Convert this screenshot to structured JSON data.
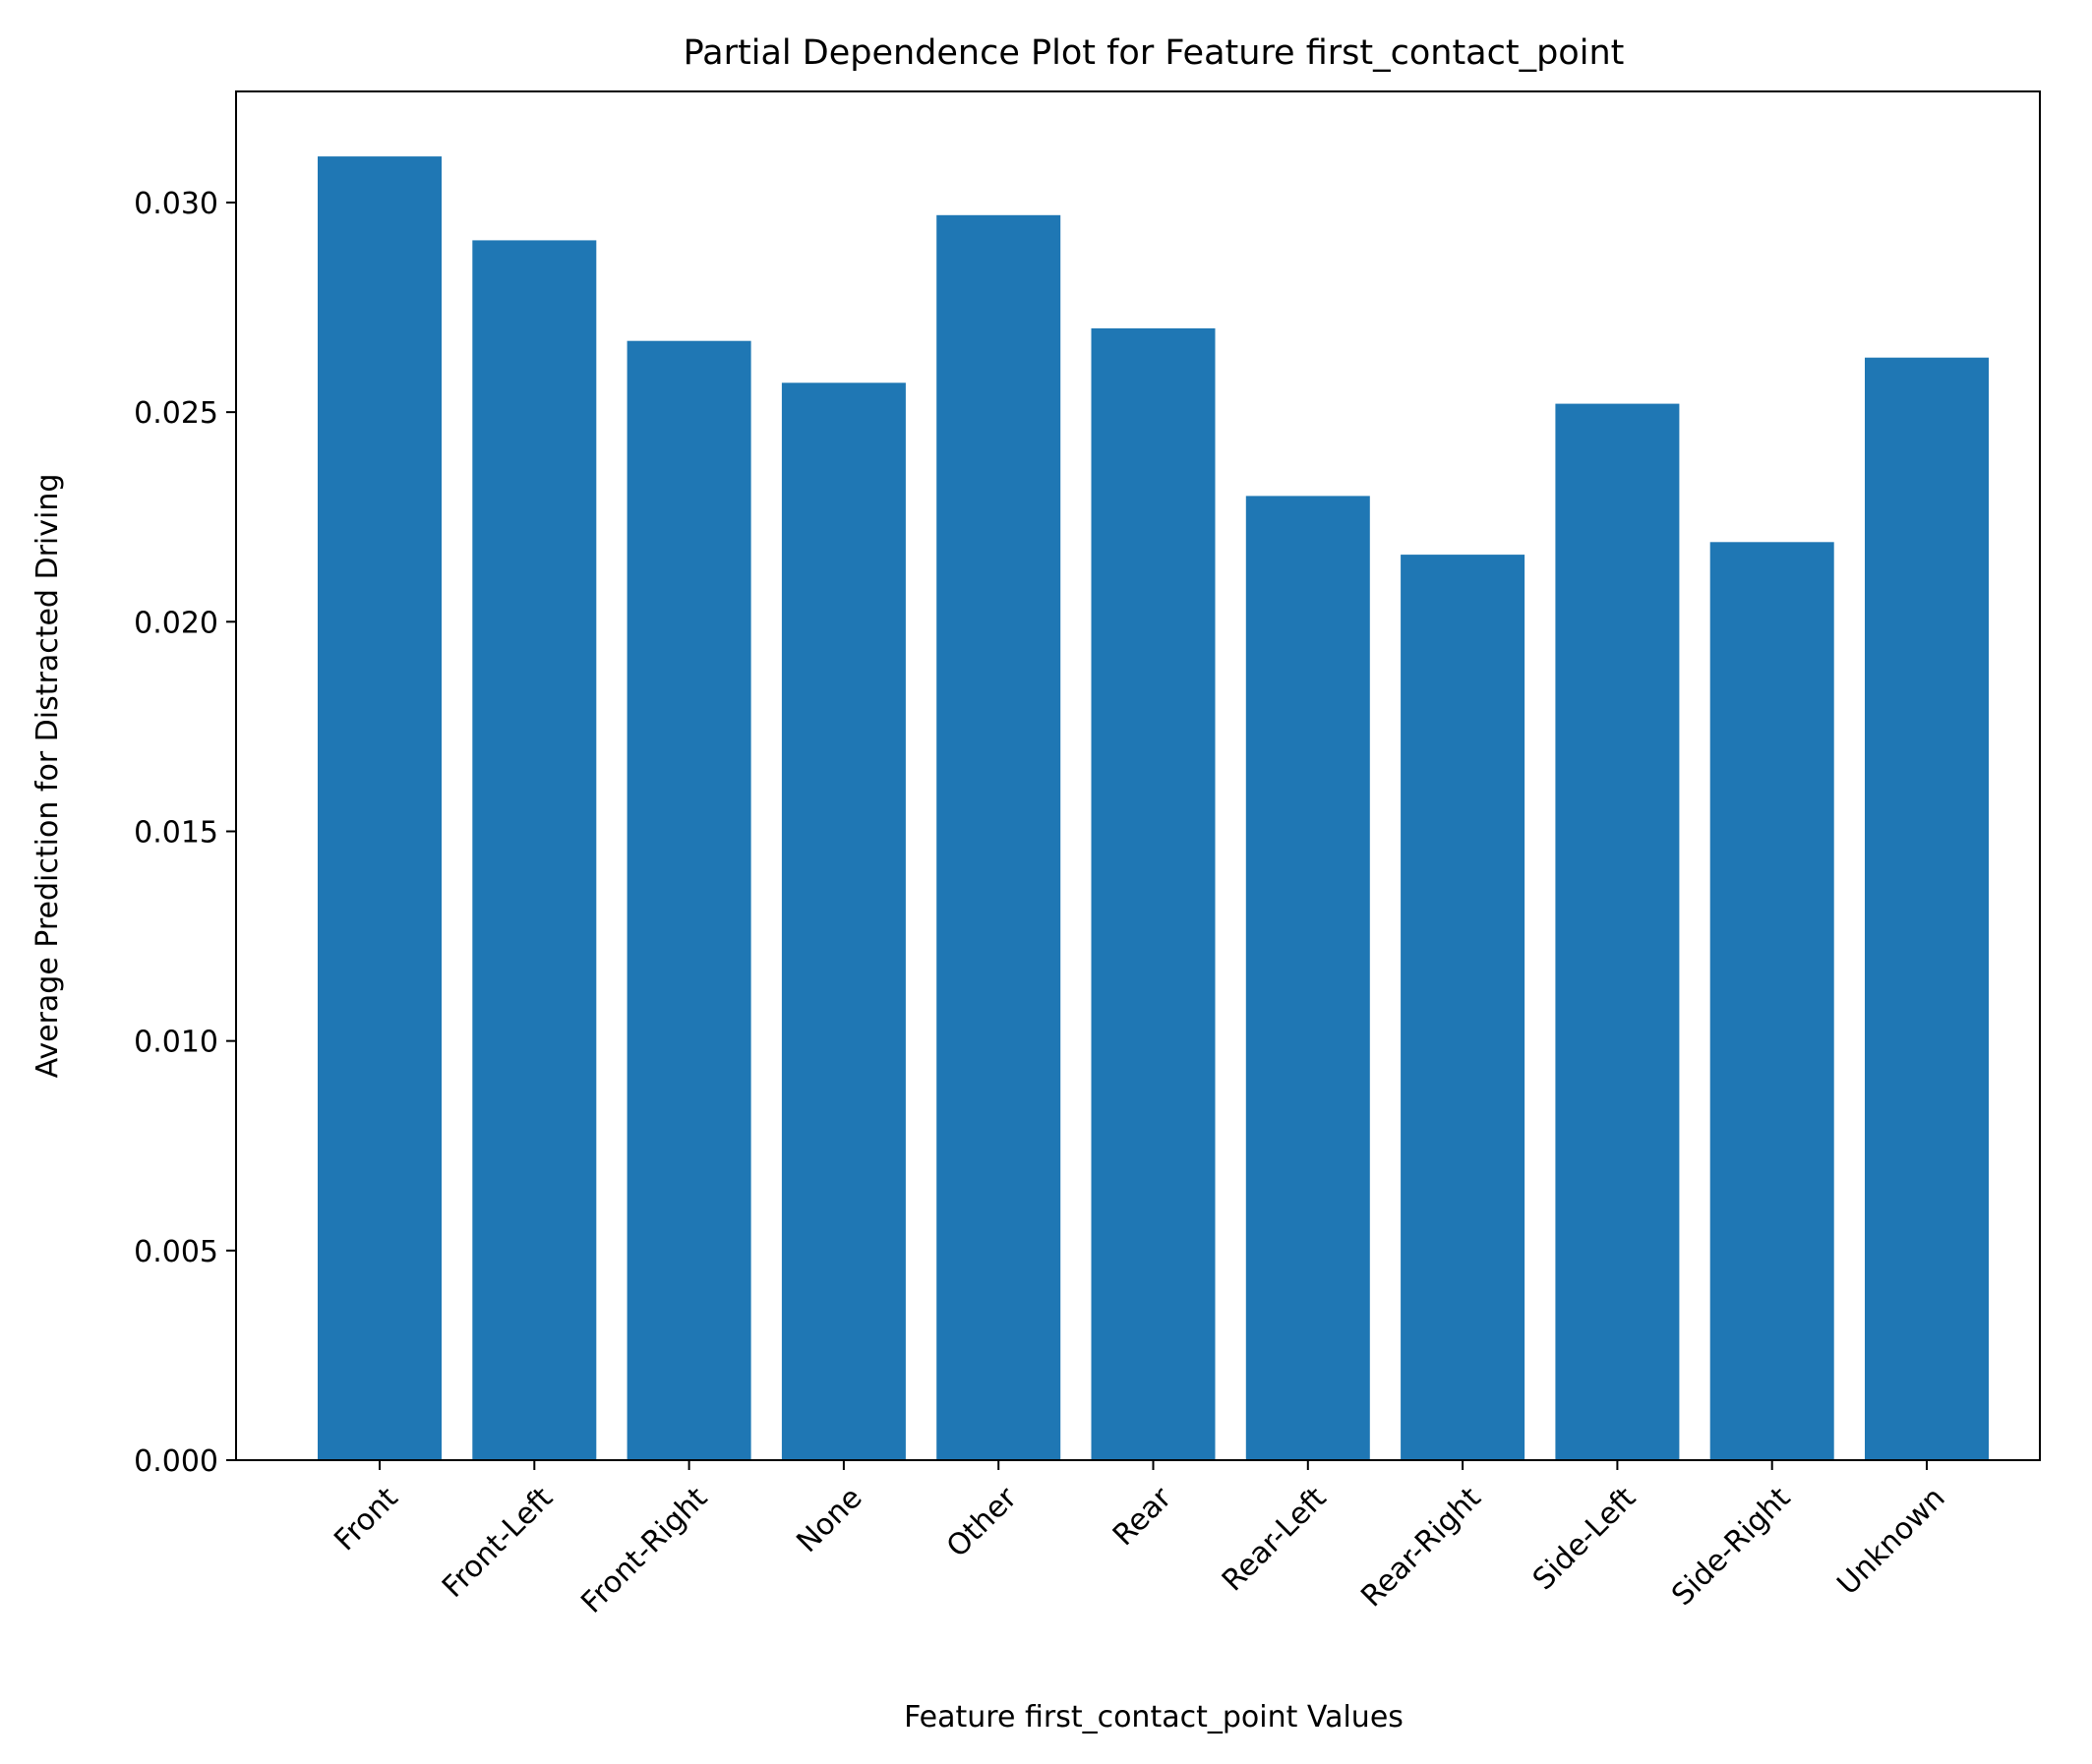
{
  "chart_data": {
    "type": "bar",
    "title": "Partial Dependence Plot for Feature first_contact_point",
    "xlabel": "Feature first_contact_point Values",
    "ylabel": "Average Prediction for Distracted Driving",
    "categories": [
      "Front",
      "Front-Left",
      "Front-Right",
      "None",
      "Other",
      "Rear",
      "Rear-Left",
      "Rear-Right",
      "Side-Left",
      "Side-Right",
      "Unknown"
    ],
    "values": [
      0.0311,
      0.0291,
      0.0267,
      0.0257,
      0.0297,
      0.027,
      0.023,
      0.0216,
      0.0252,
      0.0219,
      0.0263
    ],
    "ylim": [
      0,
      0.03265
    ],
    "yticks": [
      "0.000",
      "0.005",
      "0.010",
      "0.015",
      "0.020",
      "0.025",
      "0.030"
    ],
    "ytick_values": [
      0,
      0.005,
      0.01,
      0.015,
      0.02,
      0.025,
      0.03
    ],
    "bar_color": "#1f77b4",
    "grid": false,
    "legend": "none"
  }
}
